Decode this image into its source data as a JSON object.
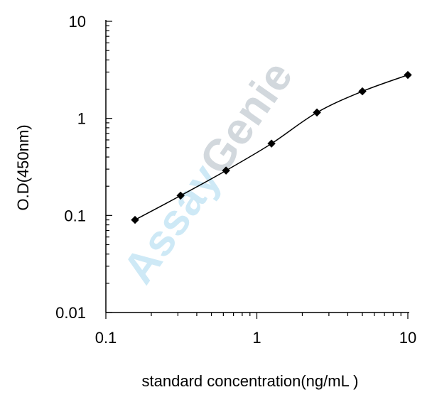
{
  "chart_data": {
    "type": "line",
    "title": "",
    "xlabel": "standard concentration(ng/mL  )",
    "ylabel": "O.D(450nm)",
    "xscale": "log",
    "yscale": "log",
    "xlim": [
      0.1,
      10
    ],
    "ylim": [
      0.01,
      10
    ],
    "xticks": [
      "0.1",
      "1",
      "10"
    ],
    "yticks": [
      "0.01",
      "0.1",
      "1",
      "10"
    ],
    "grid": false,
    "legend": "none",
    "series": [
      {
        "x": [
          0.156,
          0.3125,
          0.625,
          1.25,
          2.5,
          5,
          10
        ],
        "y": [
          0.09,
          0.16,
          0.29,
          0.55,
          1.15,
          1.9,
          2.8
        ],
        "marker": "diamond",
        "color": "#000000"
      }
    ]
  },
  "watermark": {
    "assay": "Assay",
    "genie": "Genie",
    "assay_color": "#7fc8e8",
    "genie_color": "#8c9aa8"
  }
}
